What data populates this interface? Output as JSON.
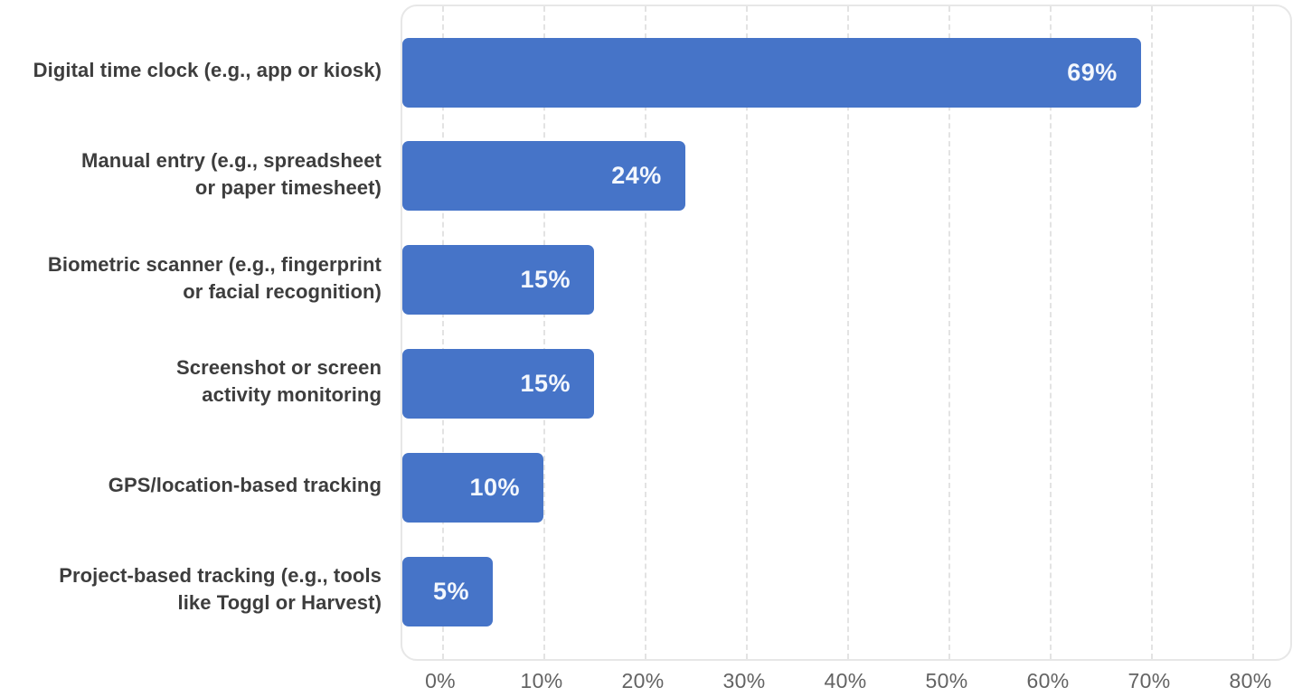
{
  "chart_data": {
    "type": "bar",
    "orientation": "horizontal",
    "title": "",
    "xlabel": "",
    "ylabel": "",
    "xlim": [
      0,
      80
    ],
    "grid": true,
    "legend": false,
    "bar_color": "#4674c8",
    "value_label_color": "#f3f7fd",
    "categories": [
      "Digital time clock (e.g., app or kiosk)",
      "Manual entry (e.g., spreadsheet or paper timesheet)",
      "Biometric scanner (e.g., fingerprint or facial recognition)",
      "Screenshot or screen activity monitoring",
      "GPS/location-based tracking",
      "Project-based tracking (e.g., tools like Toggl or Harvest)"
    ],
    "categories_lines": [
      [
        "Digital time clock (e.g., app or kiosk)"
      ],
      [
        "Manual entry (e.g., spreadsheet",
        "or paper timesheet)"
      ],
      [
        "Biometric scanner (e.g., fingerprint",
        "or facial recognition)"
      ],
      [
        "Screenshot or screen",
        "activity monitoring"
      ],
      [
        "GPS/location-based tracking"
      ],
      [
        "Project-based tracking (e.g., tools",
        "like Toggl or Harvest)"
      ]
    ],
    "values": [
      69,
      24,
      15,
      15,
      10,
      5
    ],
    "value_labels": [
      "69%",
      "24%",
      "15%",
      "15%",
      "10%",
      "5%"
    ],
    "x_ticks": [
      "0%",
      "10%",
      "20%",
      "30%",
      "40%",
      "50%",
      "60%",
      "70%",
      "80%"
    ]
  }
}
